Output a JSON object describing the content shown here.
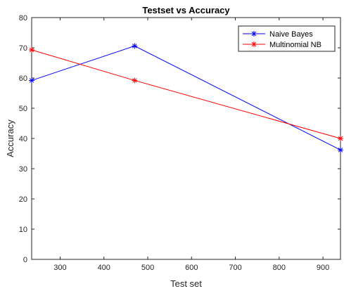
{
  "chart_data": {
    "type": "line",
    "title": "Testset vs Accuracy",
    "xlabel": "Test set",
    "ylabel": "Accuracy",
    "xlim": [
      235,
      940
    ],
    "ylim": [
      0,
      80
    ],
    "xticks": [
      300,
      400,
      500,
      600,
      700,
      800,
      900
    ],
    "yticks": [
      0,
      10,
      20,
      30,
      40,
      50,
      60,
      70,
      80
    ],
    "grid": false,
    "legend_position": "top-right",
    "series": [
      {
        "name": "Naive Bayes",
        "color": "#0000ff",
        "marker": "asterisk",
        "x": [
          235,
          470,
          940
        ],
        "y": [
          59.2,
          70.6,
          36.2
        ]
      },
      {
        "name": "Multinomial NB",
        "color": "#ff0000",
        "marker": "asterisk",
        "x": [
          235,
          470,
          940
        ],
        "y": [
          69.3,
          59.2,
          40.0
        ]
      }
    ]
  }
}
